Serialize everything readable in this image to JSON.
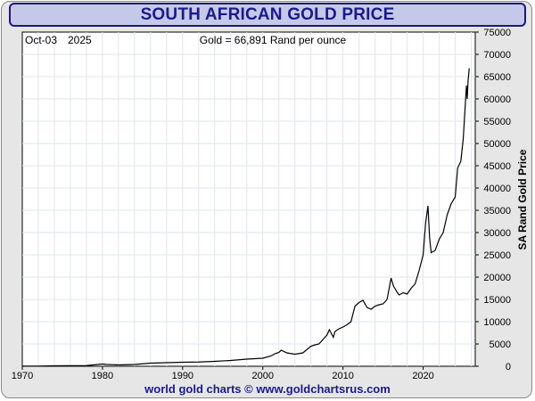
{
  "chart_data": {
    "type": "line",
    "title": "SOUTH AFRICAN GOLD PRICE",
    "date_label": "Oct-03",
    "year_label": "2025",
    "price_label": "Gold = 66,891 Rand per ounce",
    "ylabel": "SA Rand Gold Price",
    "xlim": [
      1970,
      2026.5
    ],
    "ylim": [
      0,
      75000
    ],
    "x_ticks": [
      1970,
      1980,
      1990,
      2000,
      2010,
      2020
    ],
    "y_ticks": [
      0,
      5000,
      10000,
      15000,
      20000,
      25000,
      30000,
      35000,
      40000,
      45000,
      50000,
      55000,
      60000,
      65000,
      70000,
      75000
    ],
    "grid": true,
    "series": [
      {
        "x": [
          1970,
          1972,
          1974,
          1976,
          1978,
          1980,
          1980.5,
          1982,
          1984,
          1986,
          1988,
          1990,
          1992,
          1994,
          1996,
          1998,
          2000,
          2001,
          2001.5,
          2002,
          2002.3,
          2003,
          2004,
          2005,
          2006,
          2006.5,
          2007,
          2008,
          2008.3,
          2008.8,
          2009,
          2009.5,
          2010,
          2010.5,
          2011,
          2011.5,
          2012,
          2012.5,
          2013,
          2013.5,
          2014,
          2014.5,
          2015,
          2015.5,
          2016,
          2016.3,
          2016.8,
          2017,
          2017.5,
          2018,
          2018.5,
          2019,
          2019.5,
          2020,
          2020.3,
          2020.6,
          2020.8,
          2021,
          2021.5,
          2022,
          2022.5,
          2023,
          2023.5,
          2024,
          2024.3,
          2024.7,
          2025,
          2025.2,
          2025.4,
          2025.5,
          2025.6,
          2025.75
        ],
        "values": [
          25,
          40,
          100,
          120,
          150,
          500,
          400,
          300,
          400,
          700,
          800,
          900,
          950,
          1100,
          1300,
          1600,
          1800,
          2300,
          2800,
          3100,
          3600,
          3000,
          2700,
          3000,
          4500,
          4800,
          5000,
          7000,
          8200,
          6500,
          7800,
          8400,
          8800,
          9300,
          10000,
          13500,
          14300,
          14800,
          13200,
          12800,
          13500,
          13800,
          14000,
          15000,
          19800,
          18000,
          16500,
          16000,
          16500,
          16200,
          17500,
          18500,
          21500,
          25000,
          32000,
          36000,
          29000,
          25500,
          26000,
          28500,
          30000,
          34000,
          36500,
          38000,
          44500,
          46000,
          51000,
          57000,
          63000,
          60000,
          64000,
          66891
        ]
      }
    ]
  },
  "footer_text": "world gold charts © www.goldchartsrus.com"
}
